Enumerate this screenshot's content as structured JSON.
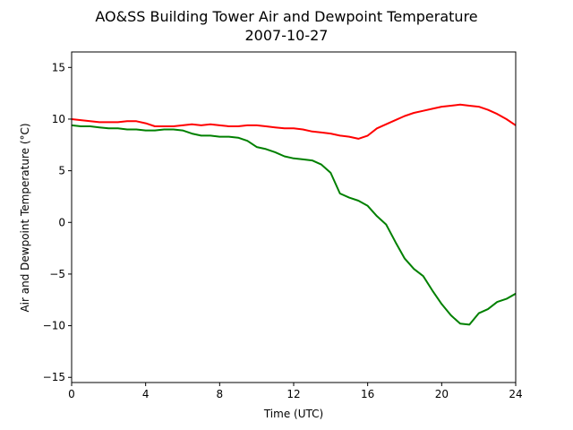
{
  "chart_data": {
    "type": "line",
    "title": "AO&SS Building Tower Air and Dewpoint Temperature",
    "subtitle": "2007-10-27",
    "xlabel": "Time (UTC)",
    "ylabel": "Air and Dewpoint Temperature (°C)",
    "xlim": [
      0,
      24
    ],
    "ylim": [
      -15.5,
      16.5
    ],
    "xticks": [
      0,
      4,
      8,
      12,
      16,
      20,
      24
    ],
    "yticks": [
      -15,
      -10,
      -5,
      0,
      5,
      10,
      15
    ],
    "grid": false,
    "legend": "none",
    "series": [
      {
        "color": "#ff0000",
        "x": [
          0,
          0.5,
          1,
          1.5,
          2,
          2.5,
          3,
          3.5,
          4,
          4.5,
          5,
          5.5,
          6,
          6.5,
          7,
          7.5,
          8,
          8.5,
          9,
          9.5,
          10,
          10.5,
          11,
          11.5,
          12,
          12.5,
          13,
          13.5,
          14,
          14.5,
          15,
          15.5,
          16,
          16.5,
          17,
          17.5,
          18,
          18.5,
          19,
          19.5,
          20,
          20.5,
          21,
          21.5,
          22,
          22.5,
          23,
          23.5,
          24
        ],
        "y": [
          10.0,
          9.9,
          9.8,
          9.7,
          9.7,
          9.7,
          9.8,
          9.8,
          9.6,
          9.3,
          9.3,
          9.3,
          9.4,
          9.5,
          9.4,
          9.5,
          9.4,
          9.3,
          9.3,
          9.4,
          9.4,
          9.3,
          9.2,
          9.1,
          9.1,
          9.0,
          8.8,
          8.7,
          8.6,
          8.4,
          8.3,
          8.1,
          8.4,
          9.1,
          9.5,
          9.9,
          10.3,
          10.6,
          10.8,
          11.0,
          11.2,
          11.3,
          11.4,
          11.3,
          11.2,
          10.9,
          10.5,
          10.0,
          9.4
        ]
      },
      {
        "color": "#008000",
        "x": [
          0,
          0.5,
          1,
          1.5,
          2,
          2.5,
          3,
          3.5,
          4,
          4.5,
          5,
          5.5,
          6,
          6.5,
          7,
          7.5,
          8,
          8.5,
          9,
          9.5,
          10,
          10.5,
          11,
          11.5,
          12,
          12.5,
          13,
          13.5,
          14,
          14.5,
          15,
          15.5,
          16,
          16.5,
          17,
          17.5,
          18,
          18.5,
          19,
          19.5,
          20,
          20.5,
          21,
          21.5,
          22,
          22.5,
          23,
          23.5,
          24
        ],
        "y": [
          9.4,
          9.3,
          9.3,
          9.2,
          9.1,
          9.1,
          9.0,
          9.0,
          8.9,
          8.9,
          9.0,
          9.0,
          8.9,
          8.6,
          8.4,
          8.4,
          8.3,
          8.3,
          8.2,
          7.9,
          7.3,
          7.1,
          6.8,
          6.4,
          6.2,
          6.1,
          6.0,
          5.6,
          4.8,
          2.8,
          2.4,
          2.1,
          1.6,
          0.6,
          -0.2,
          -1.9,
          -3.5,
          -4.5,
          -5.2,
          -6.6,
          -7.9,
          -9.0,
          -9.8,
          -9.9,
          -8.8,
          -8.4,
          -7.7,
          -7.4,
          -6.9
        ]
      }
    ]
  }
}
